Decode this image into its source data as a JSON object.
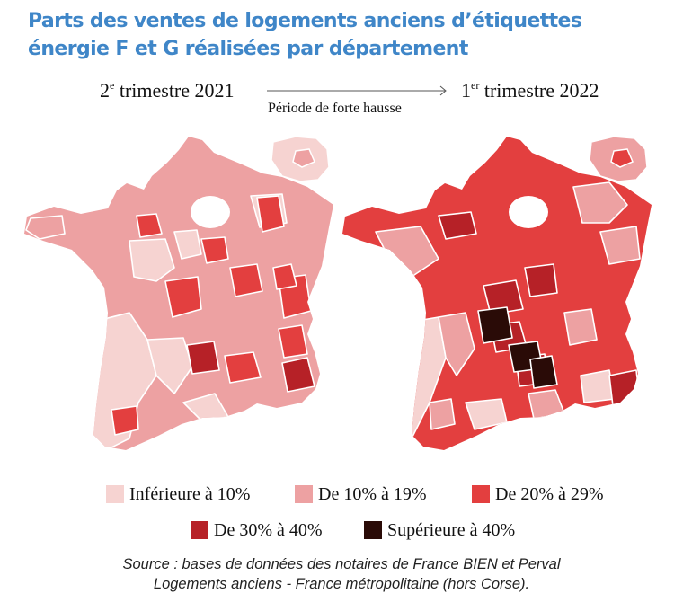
{
  "title": "Parts des ventes de logements anciens d’étiquettes énergie F et G réalisées par département",
  "period_start": {
    "ordinal": "2",
    "ordinal_suffix": "e",
    "label": " trimestre 2021"
  },
  "period_end": {
    "ordinal": "1",
    "ordinal_suffix": "er",
    "label": " trimestre 2022"
  },
  "arrow_label": "Période de forte hausse",
  "legend": [
    {
      "label": "Inférieure à 10%",
      "color": "#f6d3d1"
    },
    {
      "label": "De 10% à 19%",
      "color": "#eda1a2"
    },
    {
      "label": "De 20% à 29%",
      "color": "#e33f3f"
    },
    {
      "label": "De 30% à 40%",
      "color": "#b62127"
    },
    {
      "label": "Supérieure à 40%",
      "color": "#2a0b07"
    }
  ],
  "source": {
    "line1": "Source : bases de données des notaires de France BIEN et Perval",
    "line2": "Logements anciens - France métropolitaine (hors Corse)."
  },
  "maps": {
    "left_period": "2e trimestre 2021",
    "right_period": "1er trimestre 2022"
  }
}
